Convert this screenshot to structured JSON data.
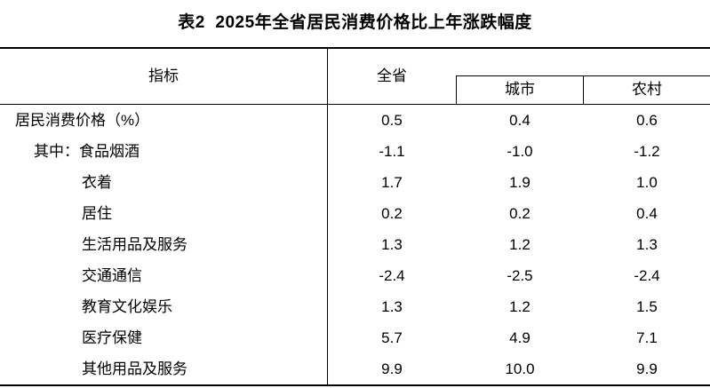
{
  "title": "表2  2025年全省居民消费价格比上年涨跌幅度",
  "table": {
    "header": {
      "indicator": "指标",
      "province": "全省",
      "city": "城市",
      "rural": "农村"
    },
    "rows": [
      {
        "label": "居民消费价格（%）",
        "province": "0.5",
        "city": "0.4",
        "rural": "0.6"
      },
      {
        "label": "其中：食品烟酒",
        "province": "-1.1",
        "city": "-1.0",
        "rural": "-1.2"
      },
      {
        "label": "衣着",
        "province": "1.7",
        "city": "1.9",
        "rural": "1.0"
      },
      {
        "label": "居住",
        "province": "0.2",
        "city": "0.2",
        "rural": "0.4"
      },
      {
        "label": "生活用品及服务",
        "province": "1.3",
        "city": "1.2",
        "rural": "1.3"
      },
      {
        "label": "交通通信",
        "province": "-2.4",
        "city": "-2.5",
        "rural": "-2.4"
      },
      {
        "label": "教育文化娱乐",
        "province": "1.3",
        "city": "1.2",
        "rural": "1.5"
      },
      {
        "label": "医疗保健",
        "province": "5.7",
        "city": "4.9",
        "rural": "7.1"
      },
      {
        "label": "其他用品及服务",
        "province": "9.9",
        "city": "10.0",
        "rural": "9.9"
      }
    ]
  },
  "colors": {
    "border": "#000000",
    "text": "#000000",
    "background": "#ffffff"
  }
}
